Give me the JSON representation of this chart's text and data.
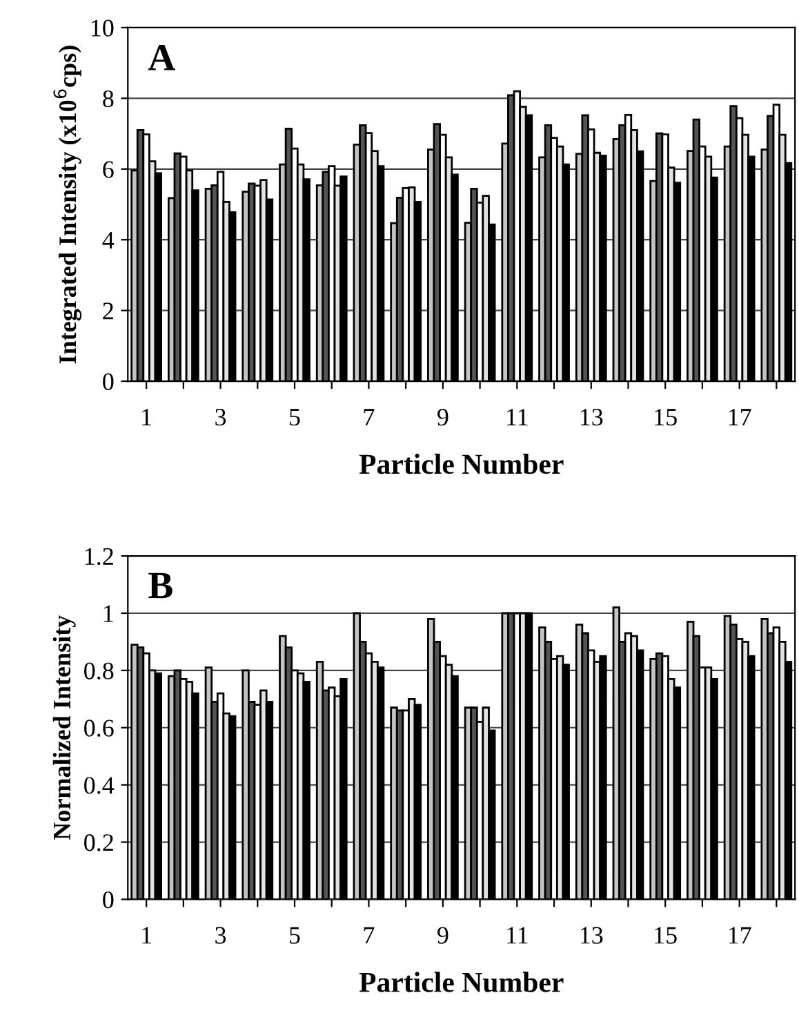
{
  "chart_data": [
    {
      "type": "bar",
      "annotations": [
        "A"
      ],
      "xlabel": "Particle Number",
      "ylabel": "Integrated Intensity (x10$^{6}$cps)",
      "categories": [
        "1",
        null,
        "3",
        null,
        "5",
        null,
        "7",
        null,
        "9",
        null,
        "11",
        null,
        "13",
        null,
        "15",
        null,
        "17",
        null
      ],
      "series": [
        {
          "color": "#c4c4c4",
          "values": [
            5.96,
            5.18,
            5.44,
            5.36,
            6.13,
            5.54,
            6.69,
            4.47,
            6.55,
            4.48,
            6.72,
            6.33,
            6.43,
            6.85,
            5.66,
            6.51,
            6.64,
            6.55
          ]
        },
        {
          "color": "#555555",
          "values": [
            7.1,
            6.44,
            5.54,
            5.59,
            7.14,
            5.92,
            7.24,
            5.19,
            7.27,
            5.44,
            8.09,
            7.24,
            7.52,
            7.24,
            7.01,
            7.4,
            7.78,
            7.5
          ]
        },
        {
          "color": "#ffffff",
          "values": [
            6.98,
            6.35,
            5.92,
            5.53,
            6.58,
            6.08,
            7.02,
            5.46,
            6.97,
            5.05,
            8.2,
            6.88,
            7.12,
            7.53,
            6.98,
            6.64,
            7.44,
            7.82
          ]
        },
        {
          "color": "#e2e2e2",
          "values": [
            6.22,
            5.96,
            5.07,
            5.69,
            6.13,
            5.53,
            6.51,
            5.48,
            6.33,
            5.24,
            7.76,
            6.64,
            6.46,
            7.1,
            6.04,
            6.35,
            6.97,
            6.97
          ]
        },
        {
          "color": "#000000",
          "values": [
            5.88,
            5.4,
            4.78,
            5.14,
            5.71,
            5.79,
            6.08,
            5.07,
            5.84,
            4.43,
            7.52,
            6.13,
            6.38,
            6.5,
            5.61,
            5.76,
            6.35,
            6.17
          ]
        }
      ],
      "ylim": [
        0,
        10
      ],
      "yticks": [
        0,
        2,
        4,
        6,
        8,
        10
      ],
      "grid": "y"
    },
    {
      "type": "bar",
      "annotations": [
        "B"
      ],
      "xlabel": "Particle Number",
      "ylabel": "Normalized Intensity",
      "categories": [
        "1",
        null,
        "3",
        null,
        "5",
        null,
        "7",
        null,
        "9",
        null,
        "11",
        null,
        "13",
        null,
        "15",
        null,
        "17",
        null
      ],
      "series": [
        {
          "color": "#c4c4c4",
          "values": [
            0.89,
            0.78,
            0.81,
            0.8,
            0.92,
            0.83,
            1.0,
            0.67,
            0.98,
            0.67,
            1.0,
            0.95,
            0.96,
            1.02,
            0.84,
            0.97,
            0.99,
            0.98
          ]
        },
        {
          "color": "#555555",
          "values": [
            0.88,
            0.8,
            0.69,
            0.69,
            0.88,
            0.73,
            0.9,
            0.66,
            0.9,
            0.67,
            1.0,
            0.9,
            0.93,
            0.9,
            0.86,
            0.92,
            0.96,
            0.93
          ]
        },
        {
          "color": "#ffffff",
          "values": [
            0.86,
            0.77,
            0.72,
            0.68,
            0.8,
            0.74,
            0.86,
            0.66,
            0.85,
            0.62,
            1.0,
            0.84,
            0.87,
            0.93,
            0.85,
            0.81,
            0.91,
            0.95
          ]
        },
        {
          "color": "#e2e2e2",
          "values": [
            0.8,
            0.76,
            0.65,
            0.73,
            0.79,
            0.71,
            0.83,
            0.7,
            0.82,
            0.67,
            1.0,
            0.85,
            0.83,
            0.92,
            0.77,
            0.81,
            0.9,
            0.9
          ]
        },
        {
          "color": "#000000",
          "values": [
            0.79,
            0.72,
            0.64,
            0.69,
            0.76,
            0.77,
            0.81,
            0.68,
            0.78,
            0.59,
            1.0,
            0.82,
            0.85,
            0.87,
            0.74,
            0.77,
            0.85,
            0.83
          ]
        }
      ],
      "ylim": [
        0,
        1.2
      ],
      "yticks": [
        0,
        0.2,
        0.4,
        0.6,
        0.8,
        1,
        1.2
      ],
      "grid": "y"
    }
  ]
}
